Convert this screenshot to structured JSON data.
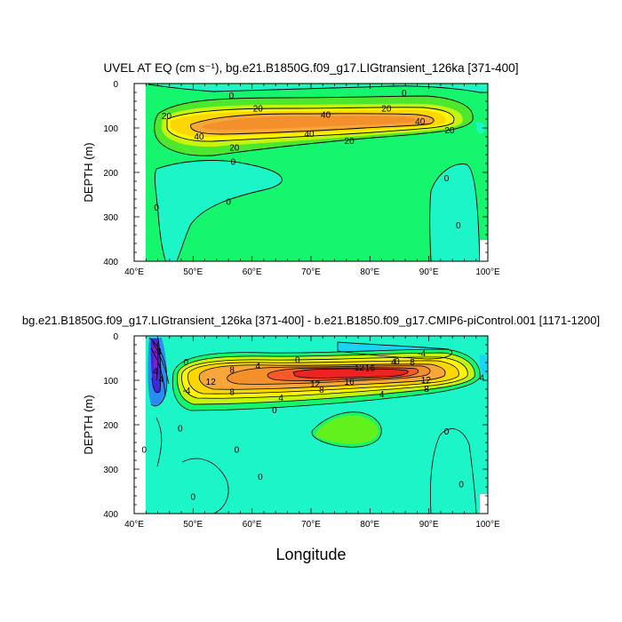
{
  "chart_data": [
    {
      "type": "contour",
      "title": "UVEL AT EQ (cm s⁻¹), bg.e21.B1850G.f09_g17.LIGtransient_126ka [371-400]",
      "ylabel": "DEPTH (m)",
      "xlabel": "",
      "xlim": [
        40,
        100
      ],
      "ylim": [
        400,
        0
      ],
      "x_ticks": [
        "40°E",
        "50°E",
        "60°E",
        "70°E",
        "80°E",
        "90°E",
        "100°E"
      ],
      "y_ticks": [
        "0",
        "100",
        "200",
        "300",
        "400"
      ],
      "contour_labels": [
        {
          "text": "0",
          "lon": 56.5,
          "depth": 26
        },
        {
          "text": "0",
          "lon": 85.8,
          "depth": 20
        },
        {
          "text": "20",
          "lon": 61.0,
          "depth": 55
        },
        {
          "text": "20",
          "lon": 82.8,
          "depth": 55
        },
        {
          "text": "20",
          "lon": 45.5,
          "depth": 72
        },
        {
          "text": "40",
          "lon": 72.5,
          "depth": 69
        },
        {
          "text": "40",
          "lon": 88.5,
          "depth": 84
        },
        {
          "text": "40",
          "lon": 51.0,
          "depth": 118
        },
        {
          "text": "40",
          "lon": 69.7,
          "depth": 112
        },
        {
          "text": "20",
          "lon": 93.5,
          "depth": 104
        },
        {
          "text": "20",
          "lon": 76.5,
          "depth": 128
        },
        {
          "text": "20",
          "lon": 57.0,
          "depth": 143
        },
        {
          "text": "0",
          "lon": 56.8,
          "depth": 175
        },
        {
          "text": "0",
          "lon": 56.0,
          "depth": 265
        },
        {
          "text": "0",
          "lon": 43.8,
          "depth": 278
        },
        {
          "text": "0",
          "lon": 93.0,
          "depth": 212
        },
        {
          "text": "0",
          "lon": 95.0,
          "depth": 318
        }
      ]
    },
    {
      "type": "contour",
      "title": "bg.e21.B1850G.f09_g17.LIGtransient_126ka [371-400] - b.e21.B1850.f09_g17.CMIP6-piControl.001 [1171-1200]",
      "ylabel": "DEPTH (m)",
      "xlabel": "Longitude",
      "xlim": [
        40,
        100
      ],
      "ylim": [
        400,
        0
      ],
      "x_ticks": [
        "40°E",
        "50°E",
        "60°E",
        "70°E",
        "80°E",
        "90°E",
        "100°E"
      ],
      "y_ticks": [
        "0",
        "100",
        "200",
        "300",
        "400"
      ],
      "contour_labels": [
        {
          "text": "0",
          "lon": 48.8,
          "depth": 58
        },
        {
          "text": "0",
          "lon": 67.7,
          "depth": 53
        },
        {
          "text": "0",
          "lon": 84.6,
          "depth": 56
        },
        {
          "text": "-4",
          "lon": 88.8,
          "depth": 38
        },
        {
          "text": "-4",
          "lon": 44.0,
          "depth": 34
        },
        {
          "text": "4",
          "lon": 43.6,
          "depth": 78
        },
        {
          "text": "4",
          "lon": 44.6,
          "depth": 96
        },
        {
          "text": "4",
          "lon": 61.0,
          "depth": 66
        },
        {
          "text": "4",
          "lon": 84.0,
          "depth": 57
        },
        {
          "text": "8",
          "lon": 56.6,
          "depth": 75
        },
        {
          "text": "8",
          "lon": 87.2,
          "depth": 58
        },
        {
          "text": "12",
          "lon": 78.2,
          "depth": 70
        },
        {
          "text": "16",
          "lon": 80.0,
          "depth": 71
        },
        {
          "text": "12",
          "lon": 53.0,
          "depth": 102
        },
        {
          "text": "16",
          "lon": 76.5,
          "depth": 102
        },
        {
          "text": "12",
          "lon": 70.7,
          "depth": 107
        },
        {
          "text": "12",
          "lon": 89.5,
          "depth": 98
        },
        {
          "text": "8",
          "lon": 56.6,
          "depth": 125
        },
        {
          "text": "8",
          "lon": 71.8,
          "depth": 120
        },
        {
          "text": "8",
          "lon": 89.6,
          "depth": 118
        },
        {
          "text": "-4",
          "lon": 48.9,
          "depth": 122
        },
        {
          "text": "4",
          "lon": 99.0,
          "depth": 93
        },
        {
          "text": "4",
          "lon": 64.9,
          "depth": 138
        },
        {
          "text": "4",
          "lon": 82.0,
          "depth": 130
        },
        {
          "text": "0",
          "lon": 63.8,
          "depth": 166
        },
        {
          "text": "0",
          "lon": 47.8,
          "depth": 207
        },
        {
          "text": "0",
          "lon": 93.0,
          "depth": 214
        },
        {
          "text": "0",
          "lon": 57.4,
          "depth": 255
        },
        {
          "text": "0",
          "lon": 41.7,
          "depth": 255
        },
        {
          "text": "0",
          "lon": 61.4,
          "depth": 316
        },
        {
          "text": "0",
          "lon": 50.0,
          "depth": 361
        },
        {
          "text": "0",
          "lon": 95.5,
          "depth": 333
        }
      ]
    }
  ]
}
